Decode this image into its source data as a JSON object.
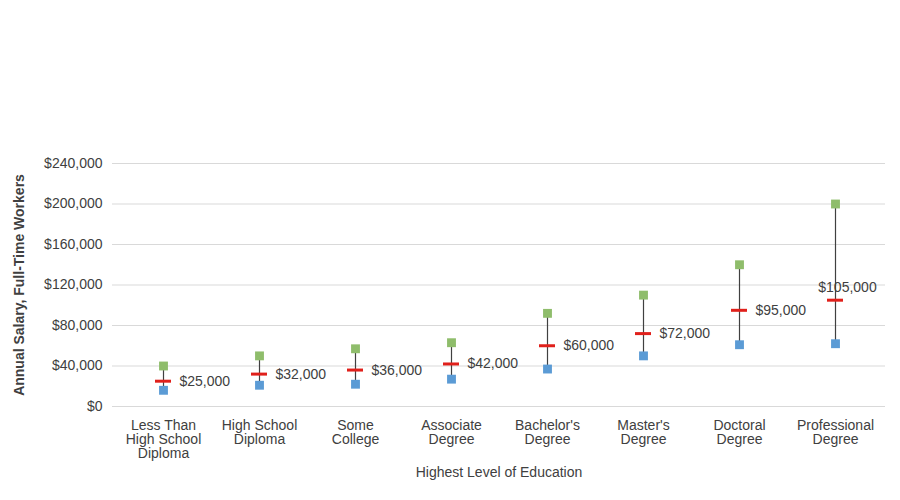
{
  "chart_data": {
    "type": "range",
    "y_label": "Annual Salary, Full-Time Workers",
    "x_label": "Highest Level of Education",
    "categories": [
      "Less Than High School Diploma",
      "High School Diploma",
      "Some College",
      "Associate Degree",
      "Bachelor's Degree",
      "Master's Degree",
      "Doctoral Degree",
      "Professional Degree"
    ],
    "values": [
      25000,
      32000,
      36000,
      42000,
      60000,
      72000,
      95000,
      105000
    ],
    "value_labels": [
      "$25,000",
      "$32,000",
      "$36,000",
      "$42,000",
      "$60,000",
      "$72,000",
      "$95,000",
      "$105,000"
    ],
    "low": [
      16000,
      21000,
      22000,
      27000,
      37000,
      50000,
      61000,
      62000
    ],
    "high": [
      40000,
      50000,
      57000,
      63000,
      92000,
      110000,
      140000,
      200000
    ],
    "color": "#e0201b",
    "ylim": [
      0,
      240000
    ],
    "yticks": [
      {
        "value": 0,
        "label": "$0"
      },
      {
        "value": 40000,
        "label": "$40,000"
      },
      {
        "value": 80000,
        "label": "$80,000"
      },
      {
        "value": 120000,
        "label": "$120,000"
      },
      {
        "value": 160000,
        "label": "$160,000"
      },
      {
        "value": 200000,
        "label": "$200,000"
      },
      {
        "value": 240000,
        "label": "$240,000"
      }
    ],
    "grid": true,
    "data_labels": true
  }
}
